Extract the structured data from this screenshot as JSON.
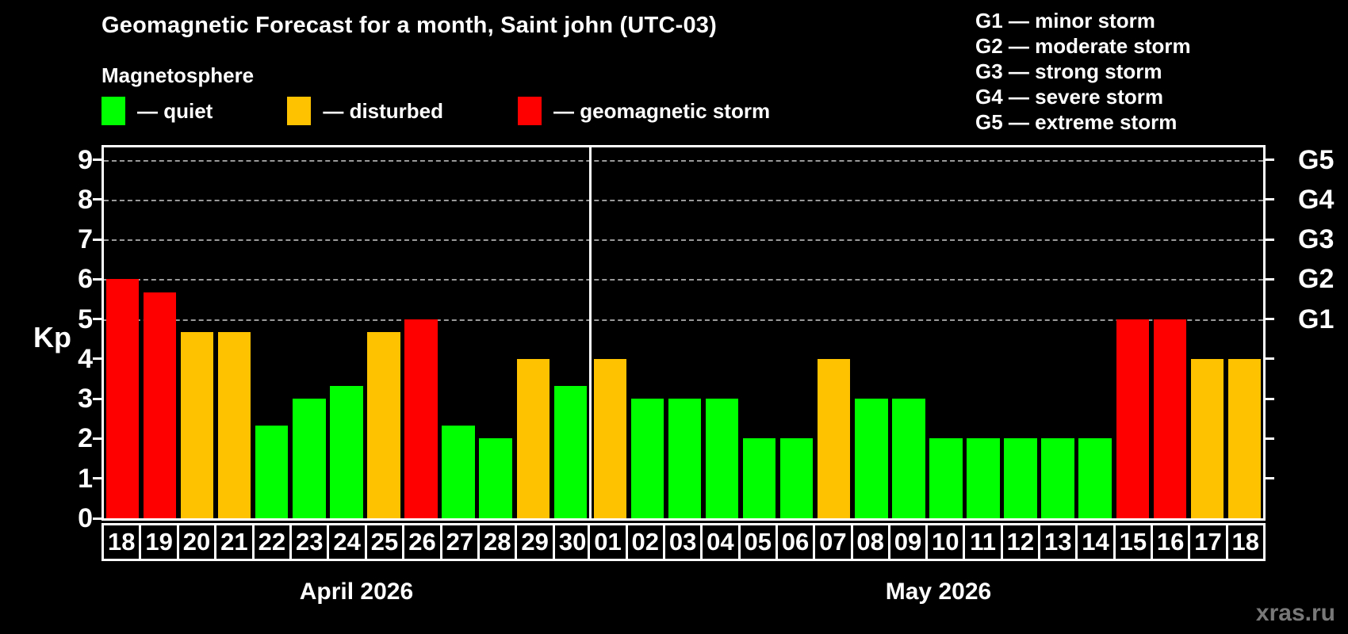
{
  "watermark": "xras.ru",
  "chart_data": {
    "type": "bar",
    "title": "Geomagnetic Forecast for a month, Saint john (UTC-03)",
    "subtitle": "Magnetosphere",
    "ylabel": "Kp",
    "ylim": [
      0,
      9
    ],
    "plot_top_units": 9.31,
    "yticks": [
      0,
      1,
      2,
      3,
      4,
      5,
      6,
      7,
      8,
      9
    ],
    "grid_values": [
      5,
      6,
      7,
      8,
      9
    ],
    "grid_style": "dashed horizontal gray",
    "legend_position": "top-left",
    "legend_items": [
      {
        "label": "— quiet",
        "status": "quiet",
        "color": "#00ff00"
      },
      {
        "label": "— disturbed",
        "status": "disturbed",
        "color": "#ffc200"
      },
      {
        "label": "— geomagnetic storm",
        "status": "storm",
        "color": "#ff0000"
      }
    ],
    "g_scale_legend": [
      "G1 — minor storm",
      "G2 — moderate storm",
      "G3 — strong storm",
      "G4 — severe storm",
      "G5 — extreme storm"
    ],
    "right_axis": [
      {
        "value": 5,
        "label": "G1"
      },
      {
        "value": 6,
        "label": "G2"
      },
      {
        "value": 7,
        "label": "G3"
      },
      {
        "value": 8,
        "label": "G4"
      },
      {
        "value": 9,
        "label": "G5"
      }
    ],
    "status_colors": {
      "quiet": "#00ff00",
      "disturbed": "#ffc200",
      "storm": "#ff0000"
    },
    "months": [
      {
        "label": "April 2026",
        "days": [
          {
            "date": "18",
            "kp": 6.0,
            "status": "storm"
          },
          {
            "date": "19",
            "kp": 5.67,
            "status": "storm"
          },
          {
            "date": "20",
            "kp": 4.67,
            "status": "disturbed"
          },
          {
            "date": "21",
            "kp": 4.67,
            "status": "disturbed"
          },
          {
            "date": "22",
            "kp": 2.33,
            "status": "quiet"
          },
          {
            "date": "23",
            "kp": 3.0,
            "status": "quiet"
          },
          {
            "date": "24",
            "kp": 3.33,
            "status": "quiet"
          },
          {
            "date": "25",
            "kp": 4.67,
            "status": "disturbed"
          },
          {
            "date": "26",
            "kp": 5.0,
            "status": "storm"
          },
          {
            "date": "27",
            "kp": 2.33,
            "status": "quiet"
          },
          {
            "date": "28",
            "kp": 2.0,
            "status": "quiet"
          },
          {
            "date": "29",
            "kp": 4.0,
            "status": "disturbed"
          },
          {
            "date": "30",
            "kp": 3.33,
            "status": "quiet"
          }
        ]
      },
      {
        "label": "May 2026",
        "days": [
          {
            "date": "01",
            "kp": 4.0,
            "status": "disturbed"
          },
          {
            "date": "02",
            "kp": 3.0,
            "status": "quiet"
          },
          {
            "date": "03",
            "kp": 3.0,
            "status": "quiet"
          },
          {
            "date": "04",
            "kp": 3.0,
            "status": "quiet"
          },
          {
            "date": "05",
            "kp": 2.0,
            "status": "quiet"
          },
          {
            "date": "06",
            "kp": 2.0,
            "status": "quiet"
          },
          {
            "date": "07",
            "kp": 4.0,
            "status": "disturbed"
          },
          {
            "date": "08",
            "kp": 3.0,
            "status": "quiet"
          },
          {
            "date": "09",
            "kp": 3.0,
            "status": "quiet"
          },
          {
            "date": "10",
            "kp": 2.0,
            "status": "quiet"
          },
          {
            "date": "11",
            "kp": 2.0,
            "status": "quiet"
          },
          {
            "date": "12",
            "kp": 2.0,
            "status": "quiet"
          },
          {
            "date": "13",
            "kp": 2.0,
            "status": "quiet"
          },
          {
            "date": "14",
            "kp": 2.0,
            "status": "quiet"
          },
          {
            "date": "15",
            "kp": 5.0,
            "status": "storm"
          },
          {
            "date": "16",
            "kp": 5.0,
            "status": "storm"
          },
          {
            "date": "17",
            "kp": 4.0,
            "status": "disturbed"
          },
          {
            "date": "18",
            "kp": 4.0,
            "status": "disturbed"
          }
        ]
      }
    ]
  }
}
